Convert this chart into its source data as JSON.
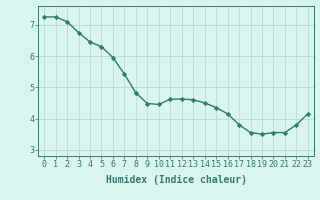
{
  "x": [
    0,
    1,
    2,
    3,
    4,
    5,
    6,
    7,
    8,
    9,
    10,
    11,
    12,
    13,
    14,
    15,
    16,
    17,
    18,
    19,
    20,
    21,
    22,
    23
  ],
  "y": [
    7.25,
    7.25,
    7.1,
    6.75,
    6.45,
    6.3,
    5.95,
    5.42,
    4.82,
    4.48,
    4.45,
    4.62,
    4.62,
    4.6,
    4.5,
    4.35,
    4.15,
    3.8,
    3.55,
    3.5,
    3.55,
    3.55,
    3.8,
    4.15
  ],
  "line_color": "#2e7d6e",
  "marker": "D",
  "marker_size": 2.2,
  "bg_color": "#d8f5f0",
  "grid_color": "#aed8d0",
  "xlabel": "Humidex (Indice chaleur)",
  "xlim": [
    -0.5,
    23.5
  ],
  "ylim": [
    2.8,
    7.6
  ],
  "yticks": [
    3,
    4,
    5,
    6,
    7
  ],
  "xticks": [
    0,
    1,
    2,
    3,
    4,
    5,
    6,
    7,
    8,
    9,
    10,
    11,
    12,
    13,
    14,
    15,
    16,
    17,
    18,
    19,
    20,
    21,
    22,
    23
  ],
  "xlabel_fontsize": 7,
  "tick_fontsize": 6,
  "line_width": 1.0,
  "spine_color": "#2e7d6e"
}
